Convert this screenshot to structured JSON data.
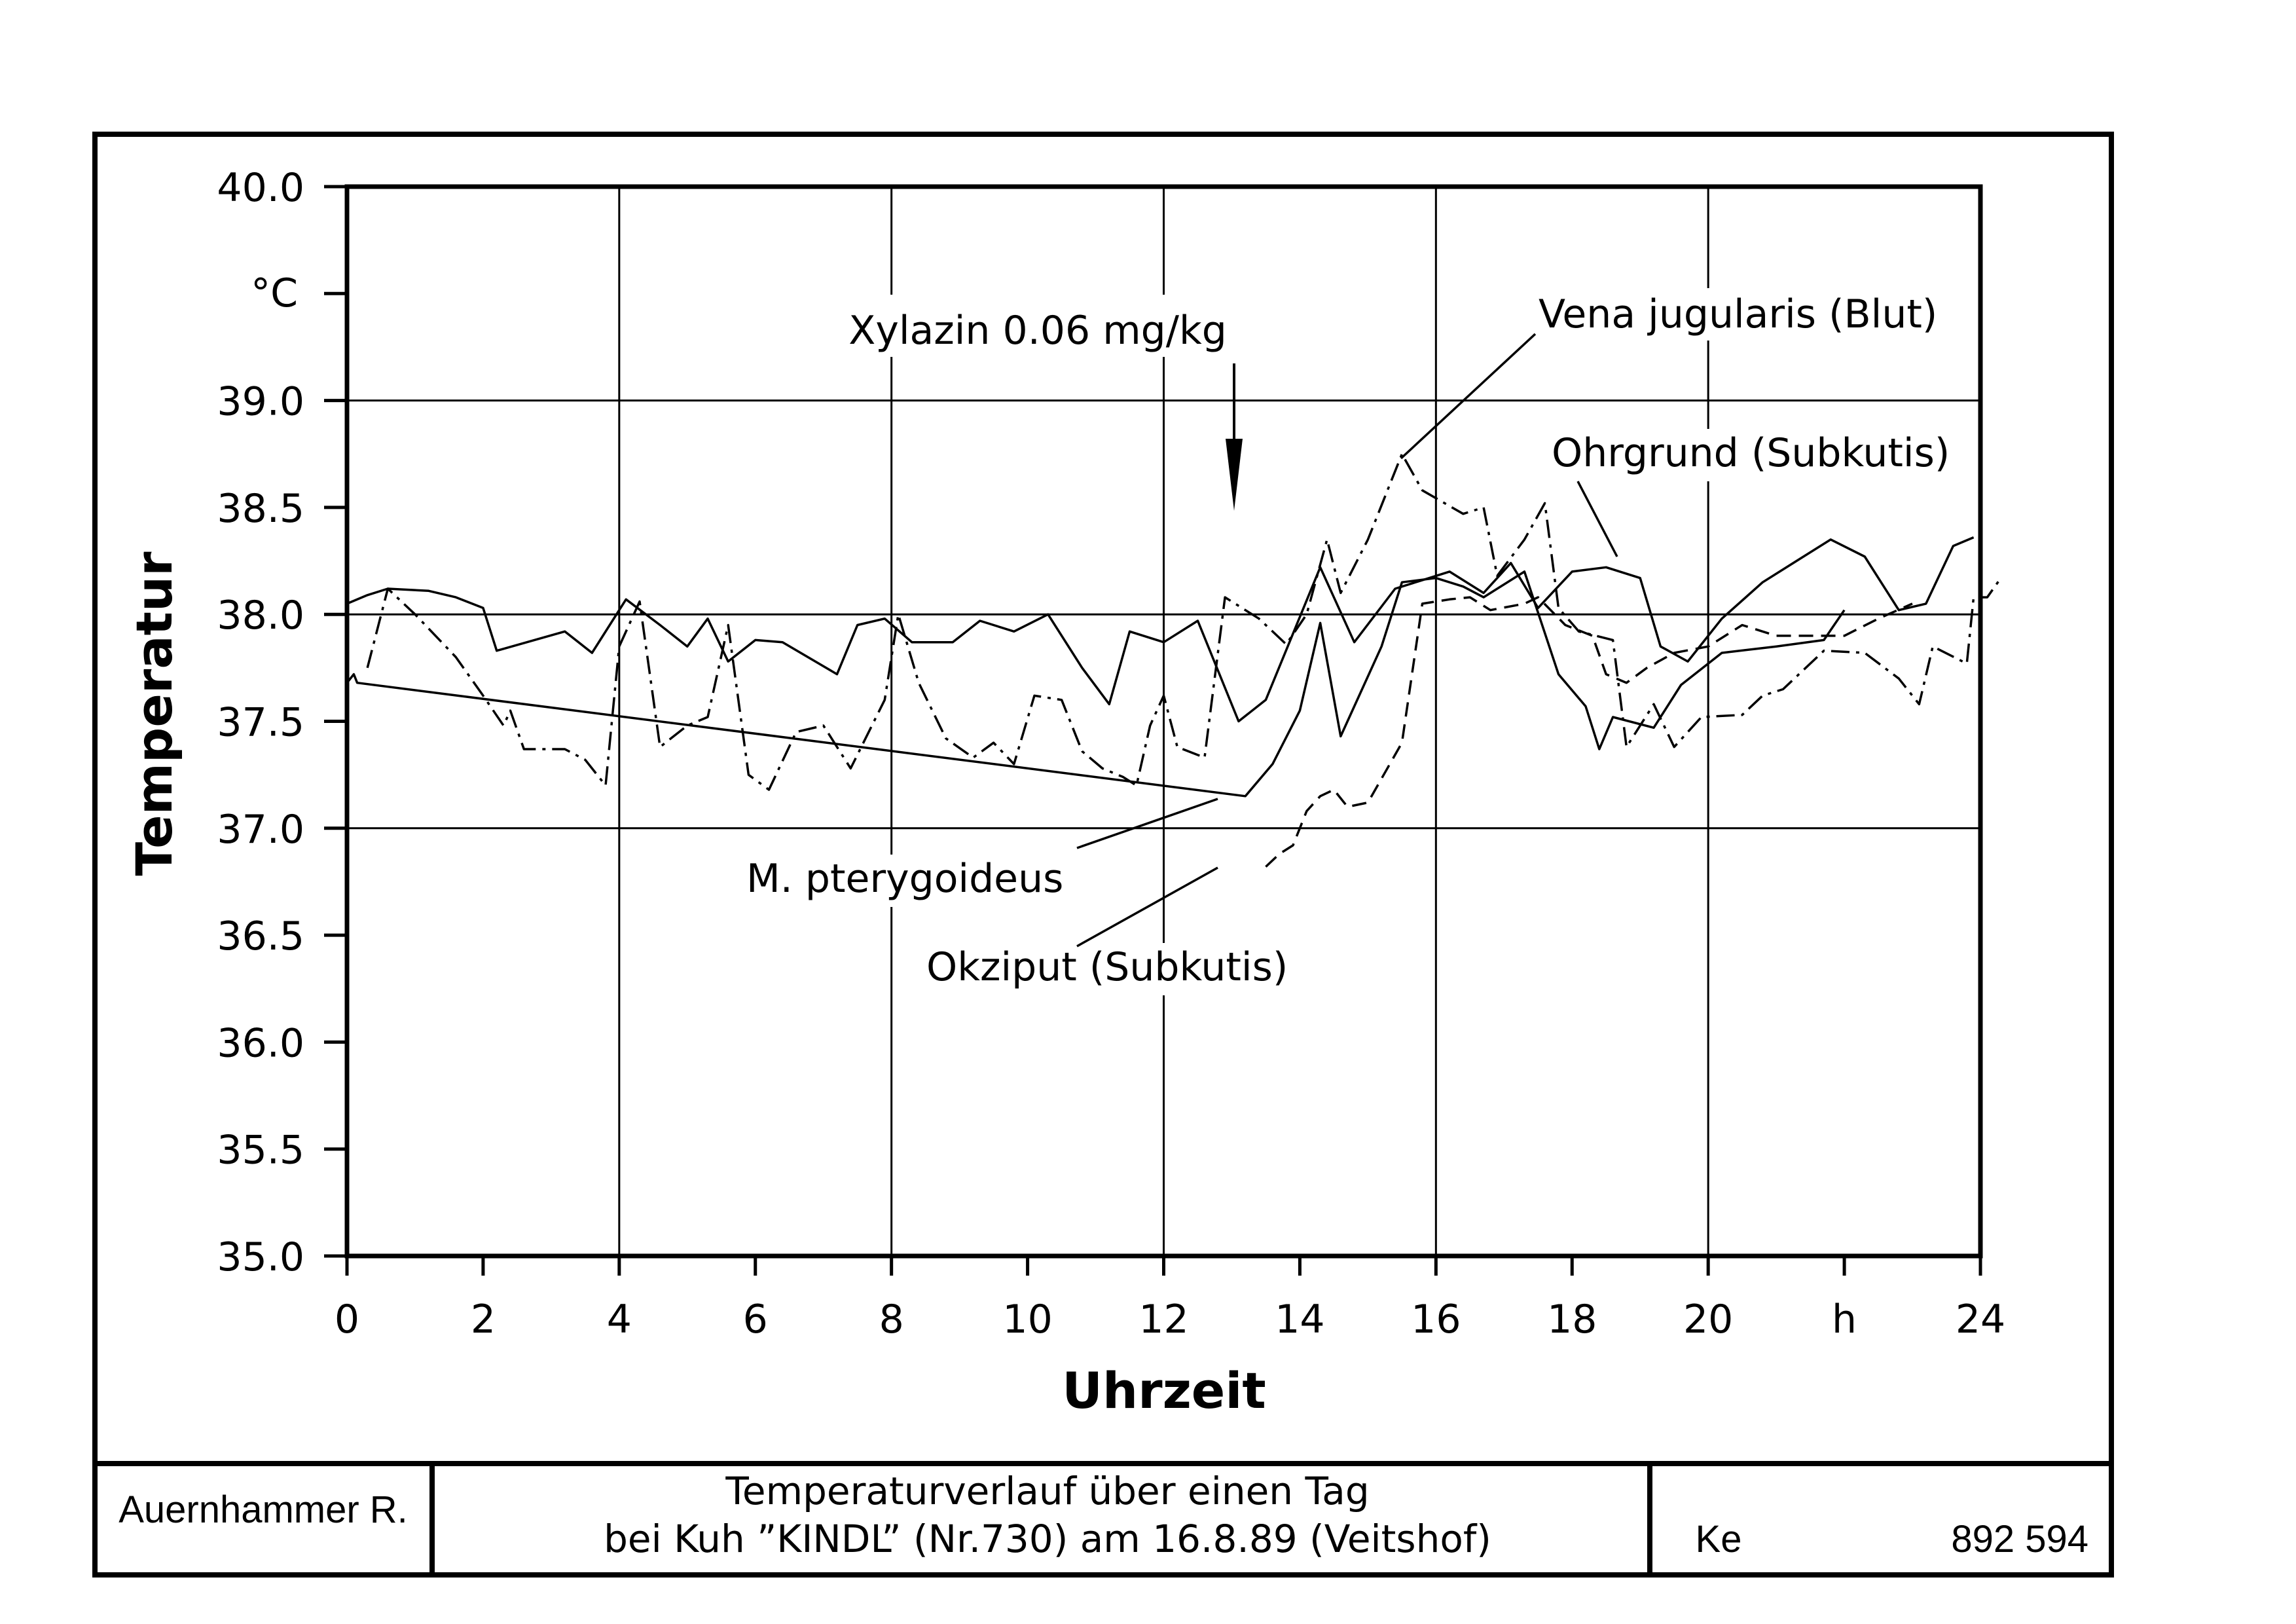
{
  "chart_data": {
    "type": "line",
    "ylabel": "Temperatur",
    "xlabel": "Uhrzeit",
    "y_unit": "°C",
    "x_unit": "h",
    "ylim": [
      35.0,
      40.0
    ],
    "xlim": [
      0,
      24
    ],
    "y_ticks": [
      "35.0",
      "35.5",
      "36.0",
      "36.5",
      "37.0",
      "37.5",
      "38.0",
      "38.5",
      "39.0",
      "40.0"
    ],
    "x_ticks": [
      "0",
      "2",
      "4",
      "6",
      "8",
      "10",
      "12",
      "14",
      "16",
      "18",
      "20",
      "24"
    ],
    "grid": true,
    "annotation_arrow": {
      "text": "Xylazin 0.06 mg/kg",
      "x": 13.0
    },
    "series": [
      {
        "name": "Ohrgrund (Subkutis)",
        "style": "solid",
        "points": [
          [
            0,
            38.05
          ],
          [
            0.3,
            38.09
          ],
          [
            0.6,
            38.12
          ],
          [
            1.2,
            38.11
          ],
          [
            1.6,
            38.08
          ],
          [
            2.0,
            38.03
          ],
          [
            2.2,
            37.83
          ],
          [
            3.2,
            37.92
          ],
          [
            3.6,
            37.82
          ],
          [
            4.1,
            38.07
          ],
          [
            4.6,
            37.95
          ],
          [
            5.0,
            37.85
          ],
          [
            5.3,
            37.98
          ],
          [
            5.6,
            37.78
          ],
          [
            6.0,
            37.88
          ],
          [
            6.4,
            37.87
          ],
          [
            7.2,
            37.72
          ],
          [
            7.5,
            37.95
          ],
          [
            7.9,
            37.98
          ],
          [
            8.3,
            37.87
          ],
          [
            8.9,
            37.87
          ],
          [
            9.3,
            37.97
          ],
          [
            9.8,
            37.92
          ],
          [
            10.3,
            38.0
          ],
          [
            10.8,
            37.75
          ],
          [
            11.2,
            37.58
          ],
          [
            11.5,
            37.92
          ],
          [
            12.0,
            37.87
          ],
          [
            12.5,
            37.97
          ],
          [
            13.1,
            37.5
          ],
          [
            13.5,
            37.6
          ],
          [
            14.3,
            38.22
          ],
          [
            14.8,
            37.87
          ],
          [
            15.4,
            38.12
          ],
          [
            16.2,
            38.2
          ],
          [
            16.7,
            38.1
          ],
          [
            17.1,
            38.24
          ],
          [
            17.5,
            38.03
          ],
          [
            18.0,
            38.2
          ],
          [
            18.5,
            38.22
          ],
          [
            19.0,
            38.17
          ],
          [
            19.3,
            37.85
          ],
          [
            19.7,
            37.78
          ],
          [
            20.2,
            37.98
          ],
          [
            20.8,
            38.15
          ],
          [
            21.3,
            38.25
          ],
          [
            21.8,
            38.35
          ],
          [
            22.3,
            38.27
          ],
          [
            22.8,
            38.02
          ],
          [
            23.2,
            38.05
          ],
          [
            23.6,
            38.32
          ],
          [
            23.9,
            38.36
          ]
        ]
      },
      {
        "name": "M. pterygoideus",
        "style": "solid",
        "points": [
          [
            0,
            37.68
          ],
          [
            0.1,
            37.72
          ],
          [
            0.15,
            37.68
          ],
          [
            13.2,
            37.15
          ],
          [
            13.6,
            37.3
          ],
          [
            14.0,
            37.55
          ],
          [
            14.3,
            37.96
          ],
          [
            14.6,
            37.43
          ],
          [
            15.2,
            37.85
          ],
          [
            15.5,
            38.15
          ],
          [
            16.0,
            38.17
          ],
          [
            16.4,
            38.13
          ],
          [
            16.7,
            38.08
          ],
          [
            17.3,
            38.2
          ],
          [
            17.8,
            37.72
          ],
          [
            18.2,
            37.57
          ],
          [
            18.4,
            37.37
          ],
          [
            18.6,
            37.52
          ],
          [
            19.2,
            37.47
          ],
          [
            19.6,
            37.67
          ],
          [
            20.2,
            37.82
          ],
          [
            21.0,
            37.85
          ],
          [
            21.7,
            37.88
          ],
          [
            22.0,
            38.02
          ]
        ]
      },
      {
        "name": "Vena jugularis (Blut)",
        "style": "dashdot",
        "points": [
          [
            0.3,
            37.75
          ],
          [
            0.6,
            38.12
          ],
          [
            1.0,
            38.0
          ],
          [
            1.6,
            37.8
          ],
          [
            2.0,
            37.62
          ],
          [
            2.3,
            37.48
          ],
          [
            2.4,
            37.55
          ],
          [
            2.6,
            37.37
          ],
          [
            3.2,
            37.37
          ],
          [
            3.5,
            37.32
          ],
          [
            3.8,
            37.2
          ],
          [
            4.0,
            37.85
          ],
          [
            4.3,
            38.06
          ],
          [
            4.6,
            37.38
          ],
          [
            5.0,
            37.48
          ],
          [
            5.3,
            37.52
          ],
          [
            5.6,
            37.95
          ],
          [
            5.9,
            37.25
          ],
          [
            6.2,
            37.18
          ],
          [
            6.6,
            37.45
          ],
          [
            7.0,
            37.48
          ],
          [
            7.4,
            37.28
          ],
          [
            7.9,
            37.6
          ],
          [
            8.1,
            38.0
          ],
          [
            8.4,
            37.68
          ],
          [
            8.8,
            37.42
          ],
          [
            9.2,
            37.33
          ],
          [
            9.5,
            37.4
          ],
          [
            9.8,
            37.3
          ],
          [
            10.1,
            37.62
          ],
          [
            10.5,
            37.6
          ],
          [
            10.8,
            37.36
          ],
          [
            11.1,
            37.28
          ],
          [
            11.4,
            37.24
          ],
          [
            11.6,
            37.2
          ],
          [
            11.8,
            37.48
          ],
          [
            12.0,
            37.62
          ],
          [
            12.2,
            37.38
          ],
          [
            12.6,
            37.33
          ],
          [
            12.9,
            38.08
          ],
          [
            13.4,
            37.98
          ],
          [
            13.8,
            37.86
          ],
          [
            14.1,
            38.0
          ],
          [
            14.4,
            38.35
          ],
          [
            14.6,
            38.1
          ],
          [
            15.0,
            38.35
          ],
          [
            15.5,
            38.75
          ],
          [
            15.8,
            38.58
          ],
          [
            16.4,
            38.47
          ],
          [
            16.7,
            38.5
          ],
          [
            16.9,
            38.18
          ],
          [
            17.3,
            38.35
          ],
          [
            17.6,
            38.52
          ],
          [
            17.8,
            38.03
          ],
          [
            18.1,
            37.92
          ],
          [
            18.6,
            37.88
          ],
          [
            18.8,
            37.38
          ],
          [
            19.2,
            37.58
          ],
          [
            19.5,
            37.38
          ],
          [
            19.9,
            37.52
          ],
          [
            20.5,
            37.53
          ],
          [
            20.8,
            37.62
          ],
          [
            21.1,
            37.65
          ],
          [
            21.7,
            37.83
          ],
          [
            22.3,
            37.82
          ],
          [
            22.8,
            37.7
          ],
          [
            23.1,
            37.58
          ],
          [
            23.3,
            37.85
          ],
          [
            23.8,
            37.77
          ],
          [
            23.9,
            38.08
          ],
          [
            24.1,
            38.08
          ],
          [
            24.3,
            38.17
          ]
        ]
      },
      {
        "name": "Okziput (Subkutis)",
        "style": "dashed",
        "points": [
          [
            13.5,
            36.82
          ],
          [
            13.7,
            36.88
          ],
          [
            13.9,
            36.92
          ],
          [
            14.1,
            37.08
          ],
          [
            14.3,
            37.15
          ],
          [
            14.5,
            37.18
          ],
          [
            14.7,
            37.1
          ],
          [
            15.0,
            37.12
          ],
          [
            15.5,
            37.4
          ],
          [
            15.8,
            38.05
          ],
          [
            16.2,
            38.07
          ],
          [
            16.5,
            38.08
          ],
          [
            16.8,
            38.02
          ],
          [
            17.3,
            38.05
          ],
          [
            17.5,
            38.08
          ],
          [
            17.9,
            37.95
          ],
          [
            18.3,
            37.9
          ],
          [
            18.5,
            37.72
          ],
          [
            18.8,
            37.68
          ],
          [
            19.1,
            37.75
          ],
          [
            19.5,
            37.82
          ],
          [
            20.0,
            37.85
          ],
          [
            20.5,
            37.95
          ],
          [
            21.0,
            37.9
          ],
          [
            21.5,
            37.9
          ],
          [
            22.0,
            37.9
          ],
          [
            22.5,
            37.98
          ],
          [
            23.0,
            38.05
          ]
        ]
      }
    ],
    "labels": [
      "Vena jugularis (Blut)",
      "Ohrgrund (Subkutis)",
      "M. pterygoideus",
      "Okziput (Subkutis)"
    ]
  },
  "footer": {
    "author": "Auernhammer R.",
    "title_line1": "Temperaturverlauf über einen Tag",
    "title_line2": "bei Kuh ”KINDL” (Nr.730) am 16.8.89 (Veitshof)",
    "code_left": "Ke",
    "code_right": "892 594"
  }
}
